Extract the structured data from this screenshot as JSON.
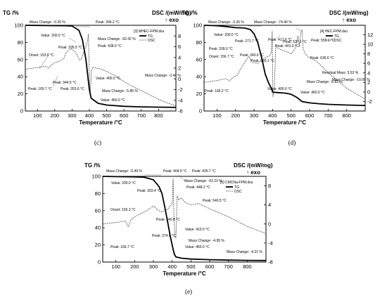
{
  "chart_data": [
    {
      "type": "line",
      "panel_label": "(c)",
      "ylabel_left": "TG /%",
      "ylabel_right": "DSC /(mW/mg)",
      "exo_label": "↑ exo",
      "xlabel": "Temperature /°C",
      "xlim": [
        30,
        900
      ],
      "ylim_left": [
        0,
        100
      ],
      "ylim_right": [
        -6,
        10
      ],
      "x_ticks": [
        100,
        200,
        300,
        400,
        500,
        600,
        700,
        800
      ],
      "y_left_ticks": [
        0,
        20,
        40,
        60,
        80,
        100
      ],
      "y_right_ticks": [
        -6,
        -4,
        -2,
        0,
        2,
        4,
        6,
        8
      ],
      "legend": [
        "[3] MHEC-FPM.dsu",
        "TG",
        "DSC"
      ],
      "series": [
        {
          "name": "TG",
          "x": [
            30,
            100,
            200,
            260,
            300,
            340,
            360,
            380,
            400,
            410,
            450,
            500,
            600,
            700,
            800,
            900
          ],
          "y": [
            100,
            99.8,
            99.6,
            99.5,
            99.2,
            94,
            83,
            60,
            25,
            15,
            9,
            7,
            5.5,
            4.8,
            4.5,
            4.3
          ]
        },
        {
          "name": "DSC",
          "x": [
            30,
            100,
            150,
            165.7,
            180,
            200,
            220,
            240,
            255,
            265,
            275,
            295.5,
            320,
            344.5,
            355,
            370,
            385,
            392,
            394.2,
            398,
            402,
            406,
            412,
            420,
            438,
            460,
            500,
            550,
            600,
            650,
            700,
            750,
            800,
            850,
            900
          ],
          "y": [
            1.8,
            2.1,
            2.4,
            2.0,
            2.6,
            3.0,
            3.2,
            3.5,
            4.0,
            4.8,
            5.2,
            5.6,
            5.0,
            3.5,
            3.8,
            5.2,
            6.5,
            7.6,
            8.4,
            3.0,
            -1.5,
            -2.4,
            1.5,
            2.2,
            2.0,
            1.9,
            1.4,
            0.6,
            -0.5,
            -1.4,
            -2.2,
            -3.0,
            -3.8,
            -4.5,
            -5.0
          ]
        }
      ],
      "annotations": [
        "Mass Change: -0.26 %",
        "Value: 200.0 °C",
        "Peak: 295.5 °C",
        "Onset: 153.8 °C",
        "Peak: 165.7 °C",
        "Peak: 344.5 °C",
        "Peak: 353.6 °C",
        "Peak: 394.2 °C",
        "Mass Change: -92.42 %",
        "Peak: 438.0 °C",
        "Value: 400.0 °C",
        "Mass Change: -5.85 %",
        "Value: 460.0 °C",
        "Mass Change: -2.44 %"
      ]
    },
    {
      "type": "line",
      "panel_label": "(d)",
      "ylabel_left": "TG /%",
      "ylabel_right": "DSC /(mW/mg)",
      "exo_label": "↑ exo",
      "xlabel": "Temperature /°C",
      "xlim": [
        30,
        900
      ],
      "ylim_left": [
        0,
        100
      ],
      "ylim_right": [
        -4,
        14
      ],
      "x_ticks": [
        100,
        200,
        300,
        400,
        500,
        600,
        700,
        800
      ],
      "y_left_ticks": [
        0,
        20,
        40,
        60,
        80,
        100
      ],
      "y_right_ticks": [
        -2,
        0,
        2,
        4,
        6,
        8,
        10,
        12
      ],
      "legend": [
        "[4] HEC-FPM.dsu",
        "TG",
        "DSC"
      ],
      "series": [
        {
          "name": "TG",
          "x": [
            30,
            100,
            150,
            200,
            250,
            280,
            300,
            320,
            343.6,
            360,
            380,
            395,
            400,
            430,
            460,
            480,
            500,
            530,
            560,
            600,
            650,
            700,
            800,
            900
          ],
          "y": [
            100,
            99.5,
            98.5,
            97.2,
            96.8,
            95,
            90,
            80,
            60,
            43,
            32,
            26,
            22,
            21.5,
            21,
            20.5,
            19.5,
            16,
            11,
            9.5,
            8.5,
            7.8,
            7,
            6.5
          ]
        },
        {
          "name": "DSC",
          "x": [
            30,
            100,
            150,
            166.2,
            185,
            209,
            230,
            260,
            271.7,
            290,
            320,
            343.6,
            360,
            380,
            393.1,
            398,
            400,
            402,
            410,
            417.6,
            425,
            440,
            460,
            480,
            500,
            520,
            537.1,
            545,
            552,
            559.1,
            565,
            580,
            600,
            636.6,
            700,
            800,
            900
          ],
          "y": [
            2,
            2.4,
            2.8,
            2.3,
            3.0,
            3.5,
            5.0,
            6.8,
            7.5,
            6.2,
            6.0,
            6.8,
            7.2,
            7.5,
            8.2,
            12.8,
            5.0,
            -1.0,
            1.0,
            9.8,
            9.3,
            9.0,
            8.6,
            8.4,
            8.0,
            9.0,
            11.8,
            9.5,
            12.5,
            13.0,
            9.0,
            7.8,
            7.2,
            6.5,
            4.0,
            0.8,
            -1.5
          ]
        }
      ],
      "annotations": [
        "Mass Change: -3.26 %",
        "Value: 200.0 °C",
        "Peak: 271.7 °C",
        "Peak: 209.0 °C",
        "Onset: 156.7 °C",
        "Peak: 166.2 °C",
        "Peak: 343.6 °C",
        "Peak: 393.1 °C",
        "Mass Change: -74.40 %",
        "Peak: 417.6 °C",
        "Peak: 401.0 °C",
        "Value: 400.0 °C",
        "Peak: 537.1 °C",
        "Peak: 559.1 °C",
        "Peak: 636.6 °C",
        "Mass Change: -6.81 %",
        "Value: 460.0 °C",
        "Residual Mass: 5.53 %",
        "Mass Change: -10.00 %"
      ]
    },
    {
      "type": "line",
      "panel_label": "(e)",
      "ylabel_left": "TG /%",
      "ylabel_right": "DSC /(mW/mg)",
      "exo_label": "↑ exo",
      "xlabel": "Temperature /°C",
      "xlim": [
        30,
        900
      ],
      "ylim_left": [
        0,
        100
      ],
      "ylim_right": [
        -8,
        10
      ],
      "x_ticks": [
        100,
        200,
        300,
        400,
        500,
        600,
        700,
        800
      ],
      "y_left_ticks": [
        0,
        20,
        40,
        60,
        80,
        100
      ],
      "y_right_ticks": [
        -8,
        -4,
        0,
        4,
        8
      ],
      "legend": [
        "[5] CMCNa-FPM.dsu",
        "TG",
        "DSC"
      ],
      "series": [
        {
          "name": "TG",
          "x": [
            30,
            100,
            200,
            250,
            300,
            330,
            345.8,
            360,
            374.9,
            390,
            404.9,
            412,
            420,
            450,
            500,
            600,
            700,
            800,
            900
          ],
          "y": [
            100,
            99.7,
            99.4,
            99.0,
            96,
            88,
            80,
            65,
            48,
            30,
            15,
            9,
            6,
            4.5,
            3.5,
            2.8,
            2.3,
            2.0,
            1.8
          ]
        },
        {
          "name": "DSC",
          "x": [
            30,
            100,
            150,
            166.7,
            180,
            200,
            250,
            280,
            303.4,
            320,
            345.8,
            360,
            374.9,
            390,
            400,
            404.9,
            410,
            415,
            420,
            426.7,
            435,
            448.2,
            470,
            500,
            540.5,
            600,
            700,
            800,
            900
          ],
          "y": [
            0,
            0.3,
            0.6,
            -0.6,
            0.8,
            1.5,
            2.5,
            3.2,
            3.8,
            3.0,
            2.5,
            2.8,
            3.0,
            3.8,
            4.2,
            9.5,
            1.0,
            -2.5,
            -3.0,
            6.0,
            5.0,
            5.5,
            4.5,
            4.0,
            4.3,
            3.2,
            1.5,
            -0.5,
            -2.0
          ]
        }
      ],
      "annotations": [
        "Mass Change: -0.49 %",
        "Peak: 404.9 °C",
        "Peak: 426.7 °C",
        "Value: 200.0 °C",
        "Peak: 303.4 °C",
        "Mass Change: -92.23 %",
        "Peak: 448.2 °C",
        "Onset: 156.3 °C",
        "Peak: 345.8 °C",
        "Peak: 540.5 °C",
        "Peak: 166.7 °C",
        "Peak: 374.9 °C",
        "Value: 410.0 °C",
        "Mass Change: -4.95 %",
        "Value: 460.0 °C",
        "Mass Change: -4.21 %"
      ]
    }
  ]
}
